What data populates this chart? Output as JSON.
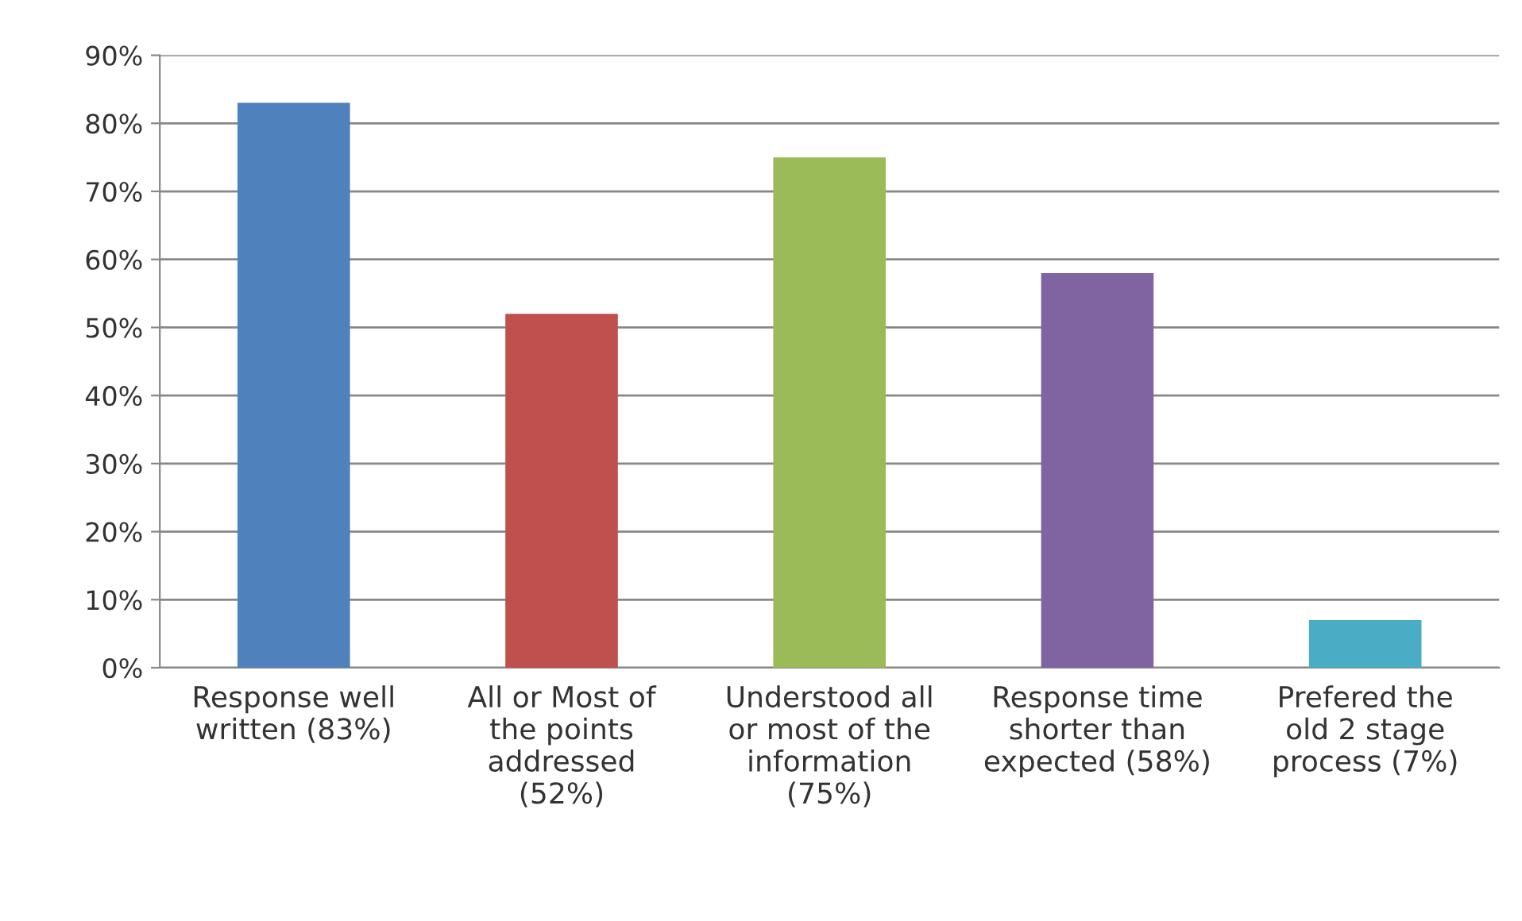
{
  "chart_data": {
    "type": "bar",
    "categories": [
      "Response well\nwritten (83%)",
      "All or Most of\nthe points\naddressed\n(52%)",
      "Understood all\nor most of the\ninformation\n(75%)",
      "Response time\nshorter than\nexpected (58%)",
      "Prefered the\nold 2 stage\nprocess (7%)"
    ],
    "values": [
      83,
      52,
      75,
      58,
      7
    ],
    "colors": [
      "#4f81bd",
      "#c0504d",
      "#9bbb59",
      "#8064a2",
      "#4bacc6"
    ],
    "ylim": [
      0,
      90
    ],
    "yticks": [
      {
        "value": 0,
        "label": "0%"
      },
      {
        "value": 10,
        "label": "10%"
      },
      {
        "value": 20,
        "label": "20%"
      },
      {
        "value": 30,
        "label": "30%"
      },
      {
        "value": 40,
        "label": "40%"
      },
      {
        "value": 50,
        "label": "50%"
      },
      {
        "value": 60,
        "label": "60%"
      },
      {
        "value": 70,
        "label": "70%"
      },
      {
        "value": 80,
        "label": "80%"
      },
      {
        "value": 90,
        "label": "90%"
      }
    ],
    "grid": "y"
  }
}
